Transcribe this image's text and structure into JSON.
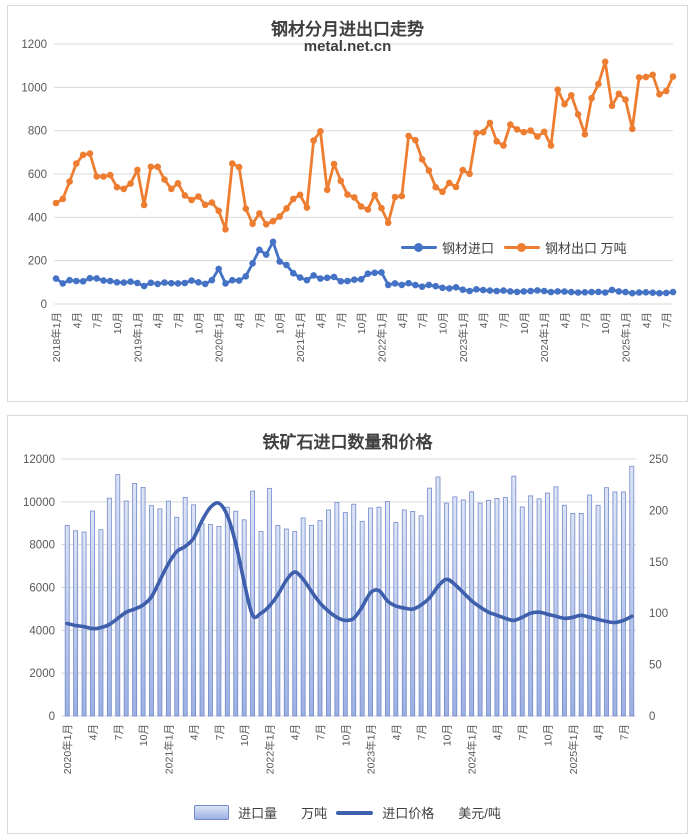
{
  "page": {
    "background": "#ffffff",
    "grid_color": "#d9d9d9",
    "axis_text_color": "#595959"
  },
  "chart_data": [
    {
      "type": "line",
      "title": "钢材分月进出口走势",
      "subtitle": "metal.net.cn",
      "x_tick_labels": [
        "2018年1月",
        "4月",
        "7月",
        "10月",
        "2019年1月",
        "4月",
        "7月",
        "10月",
        "2020年1月",
        "4月",
        "7月",
        "10月",
        "2021年1月",
        "4月",
        "7月",
        "10月",
        "2022年1月",
        "4月",
        "7月",
        "10月",
        "2023年1月",
        "4月",
        "7月",
        "10月",
        "2024年1月",
        "4月",
        "7月",
        "10月",
        "2025年1月",
        "4月",
        "7月"
      ],
      "tick_every_months": 3,
      "ylim": [
        0,
        1200
      ],
      "y_ticks": [
        0,
        200,
        400,
        600,
        800,
        1000,
        1200
      ],
      "grid": true,
      "legend_position": "inside-middle-right",
      "series": [
        {
          "name": "钢材进口",
          "color": "#4472C4",
          "values": [
            117,
            95,
            110,
            106,
            105,
            119,
            118,
            108,
            106,
            100,
            99,
            103,
            97,
            83,
            98,
            93,
            99,
            96,
            95,
            97,
            108,
            100,
            93,
            110,
            162,
            95,
            110,
            108,
            128,
            188,
            250,
            228,
            287,
            196,
            180,
            142,
            122,
            110,
            132,
            117,
            121,
            125,
            105,
            106,
            112,
            114,
            140,
            144,
            146,
            88,
            95,
            88,
            96,
            87,
            80,
            88,
            82,
            75,
            72,
            77,
            66,
            60,
            68,
            64,
            62,
            60,
            62,
            58,
            56,
            58,
            60,
            63,
            60,
            55,
            58,
            57,
            55,
            53,
            54,
            55,
            56,
            53,
            65,
            58,
            55,
            50,
            53,
            54,
            52,
            50,
            51,
            55
          ]
        },
        {
          "name": "钢材出口 万吨",
          "color": "#ED7D31",
          "values": [
            466,
            485,
            565,
            648,
            688,
            694,
            589,
            588,
            595,
            539,
            531,
            556,
            619,
            457,
            633,
            633,
            574,
            531,
            557,
            501,
            480,
            496,
            458,
            468,
            430,
            345,
            648,
            632,
            440,
            370,
            418,
            368,
            382,
            404,
            441,
            485,
            504,
            445,
            754,
            797,
            527,
            646,
            568,
            505,
            492,
            450,
            436,
            503,
            442,
            375,
            494,
            498,
            776,
            756,
            668,
            616,
            539,
            518,
            559,
            540,
            618,
            601,
            789,
            793,
            836,
            751,
            731,
            828,
            806,
            793,
            801,
            773,
            795,
            731,
            989,
            922,
            963,
            875,
            783,
            950,
            1015,
            1118,
            915,
            970,
            943,
            808,
            1046,
            1047,
            1058,
            968,
            983,
            1050
          ]
        }
      ]
    },
    {
      "type": "bar+line",
      "title": "铁矿石进口数量和价格",
      "x_tick_labels": [
        "2020年1月",
        "4月",
        "7月",
        "10月",
        "2021年1月",
        "4月",
        "7月",
        "10月",
        "2022年1月",
        "4月",
        "7月",
        "10月",
        "2023年1月",
        "4月",
        "7月",
        "10月",
        "2024年1月",
        "4月",
        "7月",
        "10月",
        "2025年1月",
        "4月",
        "7月"
      ],
      "tick_every_months": 3,
      "ylim_left": [
        0,
        12000
      ],
      "y_ticks_left": [
        0,
        2000,
        4000,
        6000,
        8000,
        10000,
        12000
      ],
      "ylim_right": [
        0,
        250
      ],
      "y_ticks_right": [
        0,
        50,
        100,
        150,
        200,
        250
      ],
      "grid": true,
      "legend_position": "bottom-center",
      "series": [
        {
          "name": "进口量",
          "unit": "万吨",
          "type": "bar",
          "axis": "left",
          "bar_fill_top": "#dde4f6",
          "bar_fill_bottom": "#9cb0e2",
          "bar_stroke": "#7289cb",
          "values": [
            8900,
            8650,
            8590,
            9570,
            8700,
            10170,
            11270,
            10040,
            10860,
            10670,
            9820,
            9670,
            10030,
            9280,
            10210,
            9860,
            8980,
            8940,
            8850,
            9750,
            9560,
            9160,
            10500,
            8610,
            10630,
            8900,
            8730,
            8610,
            9250,
            8900,
            9120,
            9620,
            9970,
            9500,
            9890,
            9090,
            9710,
            9750,
            10020,
            9040,
            9620,
            9550,
            9350,
            10640,
            11160,
            9940,
            10230,
            10090,
            10470,
            9940,
            10070,
            10160,
            10200,
            11200,
            9760,
            10280,
            10140,
            10410,
            10700,
            9840,
            9460,
            9460,
            10320,
            9840,
            10660,
            10460,
            10460,
            11660
          ]
        },
        {
          "name": "进口价格",
          "unit": "美元/吨",
          "type": "line",
          "axis": "right",
          "color": "#3E5FAC",
          "values": [
            90,
            88,
            87,
            85,
            86,
            89,
            95,
            101,
            104,
            108,
            116,
            132,
            148,
            160,
            165,
            173,
            190,
            203,
            207,
            195,
            168,
            130,
            98,
            100,
            107,
            118,
            132,
            140,
            133,
            121,
            110,
            102,
            96,
            93,
            95,
            106,
            120,
            122,
            112,
            107,
            105,
            104,
            108,
            115,
            126,
            133,
            128,
            120,
            112,
            106,
            101,
            98,
            95,
            93,
            96,
            100,
            101,
            99,
            97,
            95,
            96,
            98,
            96,
            94,
            92,
            91,
            93,
            97
          ]
        }
      ]
    }
  ]
}
